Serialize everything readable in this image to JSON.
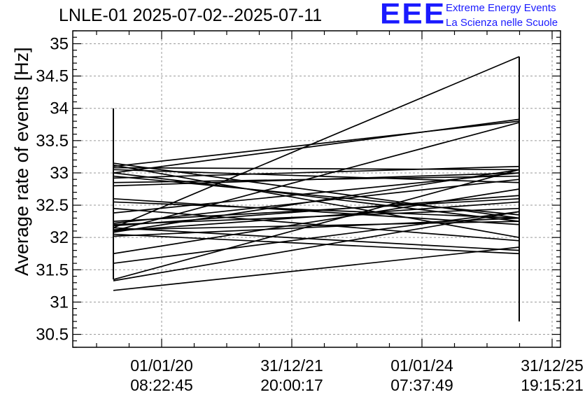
{
  "header": {
    "title": "LNLE-01 2025-07-02--2025-07-11",
    "logo_text": "EEE",
    "logo_line1": "Extreme Energy Events",
    "logo_line2": "La Scienza nelle Scuole",
    "logo_color": "#1a1aff"
  },
  "chart_data": {
    "type": "line",
    "title": "LNLE-01 2025-07-02--2025-07-11",
    "xlabel": "",
    "ylabel": "Average rate of events [Hz]",
    "ylim": [
      30.3,
      35.2
    ],
    "yticks": [
      "30.5",
      "31",
      "31.5",
      "32",
      "32.5",
      "33",
      "33.5",
      "34",
      "34.5",
      "35"
    ],
    "xtick_labels": [
      [
        "01/01/20",
        "08:22:45"
      ],
      [
        "31/12/21",
        "20:00:17"
      ],
      [
        "01/01/24",
        "07:37:49"
      ],
      [
        "31/12/25",
        "19:15:21"
      ]
    ],
    "grid": true,
    "x_points": [
      "start",
      "end"
    ],
    "start_error_bar": [
      31.35,
      34.0
    ],
    "end_error_bar": [
      30.7,
      34.8
    ],
    "series": [
      {
        "values": [
          32.15,
          34.8
        ]
      },
      {
        "values": [
          33.1,
          33.8
        ]
      },
      {
        "values": [
          32.1,
          33.78
        ]
      },
      {
        "values": [
          33.0,
          33.83
        ]
      },
      {
        "values": [
          31.35,
          33.05
        ]
      },
      {
        "values": [
          31.33,
          32.4
        ]
      },
      {
        "values": [
          31.18,
          31.85
        ]
      },
      {
        "values": [
          31.75,
          32.75
        ]
      },
      {
        "values": [
          33.15,
          32.3
        ]
      },
      {
        "values": [
          33.12,
          32.0
        ]
      },
      {
        "values": [
          33.08,
          33.05
        ]
      },
      {
        "values": [
          33.05,
          32.85
        ]
      },
      {
        "values": [
          33.0,
          32.25
        ]
      },
      {
        "values": [
          32.95,
          32.35
        ]
      },
      {
        "values": [
          32.92,
          33.1
        ]
      },
      {
        "values": [
          32.85,
          32.95
        ]
      },
      {
        "values": [
          32.8,
          33.0
        ]
      },
      {
        "values": [
          32.6,
          32.2
        ]
      },
      {
        "values": [
          32.55,
          32.3
        ]
      },
      {
        "values": [
          32.45,
          31.95
        ]
      },
      {
        "values": [
          32.38,
          33.0
        ]
      },
      {
        "values": [
          32.25,
          32.6
        ]
      },
      {
        "values": [
          32.22,
          32.9
        ]
      },
      {
        "values": [
          32.2,
          32.45
        ]
      },
      {
        "values": [
          32.18,
          32.65
        ]
      },
      {
        "values": [
          32.15,
          31.8
        ]
      },
      {
        "values": [
          32.12,
          32.25
        ]
      },
      {
        "values": [
          32.1,
          32.55
        ]
      },
      {
        "values": [
          32.08,
          33.05
        ]
      },
      {
        "values": [
          32.05,
          31.75
        ]
      },
      {
        "values": [
          32.02,
          32.3
        ]
      },
      {
        "values": [
          31.6,
          32.4
        ]
      }
    ]
  }
}
